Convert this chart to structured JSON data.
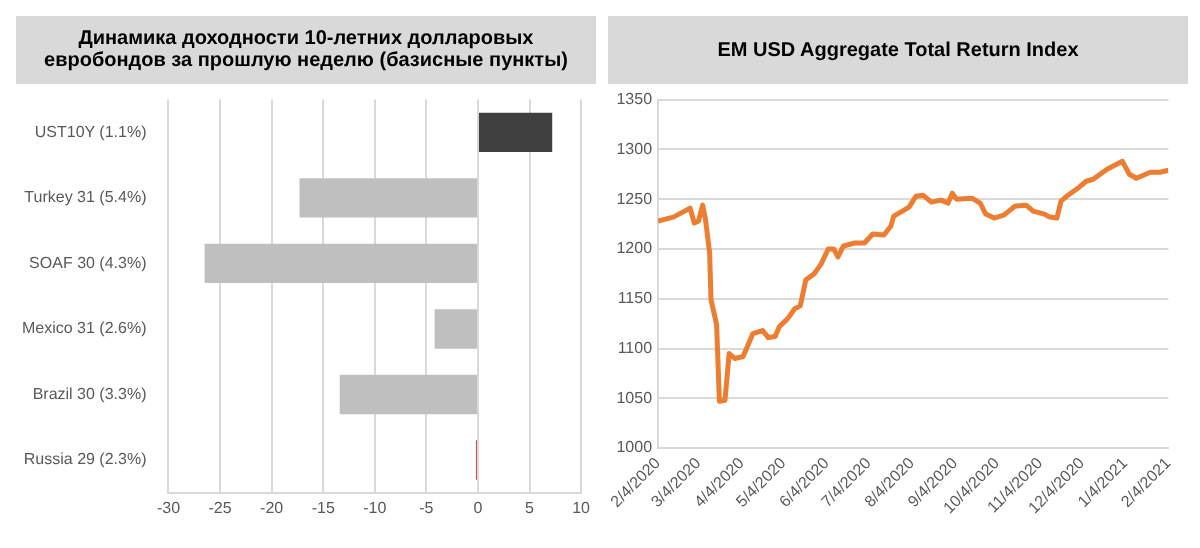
{
  "chart_data": [
    {
      "type": "bar",
      "title": "Динамика доходности 10-летних долларовых евробондов за прошлую неделю (базисные пункты)",
      "orientation": "horizontal",
      "categories": [
        "UST10Y (1.1%)",
        "Turkey 31 (5.4%)",
        "SOAF 30 (4.3%)",
        "Mexico 31 (2.6%)",
        "Brazil 30 (3.3%)",
        "Russia 29 (2.3%)"
      ],
      "values": [
        7.2,
        -17.3,
        -26.5,
        -4.2,
        -13.4,
        -0.2
      ],
      "colors": [
        "#404040",
        "#bfbfbf",
        "#bfbfbf",
        "#bfbfbf",
        "#bfbfbf",
        "#c0504d"
      ],
      "xlim": [
        -30,
        10
      ],
      "xticks": [
        -30,
        -25,
        -20,
        -15,
        -10,
        -5,
        0,
        5,
        10
      ],
      "grid": "x"
    },
    {
      "type": "line",
      "title": "EM USD Aggregate Total Return Index",
      "color": "#ed7d31",
      "x": [
        "2020-02-04",
        "2020-02-15",
        "2020-02-23",
        "2020-02-27",
        "2020-03-01",
        "2020-03-04",
        "2020-03-07",
        "2020-03-09",
        "2020-03-12",
        "2020-03-13",
        "2020-03-17",
        "2020-03-19",
        "2020-03-23",
        "2020-03-26",
        "2020-03-30",
        "2020-04-05",
        "2020-04-09",
        "2020-04-12",
        "2020-04-19",
        "2020-04-23",
        "2020-04-28",
        "2020-05-01",
        "2020-05-07",
        "2020-05-12",
        "2020-05-16",
        "2020-05-20",
        "2020-05-26",
        "2020-05-31",
        "2020-06-05",
        "2020-06-09",
        "2020-06-12",
        "2020-06-16",
        "2020-06-24",
        "2020-07-01",
        "2020-07-07",
        "2020-07-15",
        "2020-07-20",
        "2020-07-22",
        "2020-07-27",
        "2020-08-02",
        "2020-08-07",
        "2020-08-12",
        "2020-08-18",
        "2020-08-25",
        "2020-08-30",
        "2020-09-02",
        "2020-09-05",
        "2020-09-16",
        "2020-09-22",
        "2020-09-26",
        "2020-10-02",
        "2020-10-09",
        "2020-10-17",
        "2020-10-25",
        "2020-10-30",
        "2020-11-07",
        "2020-11-11",
        "2020-11-16",
        "2020-11-19",
        "2020-11-24",
        "2020-12-02",
        "2020-12-07",
        "2020-12-12",
        "2020-12-17",
        "2020-12-22",
        "2021-01-02",
        "2021-01-07",
        "2021-01-12",
        "2021-01-22",
        "2021-01-29",
        "2021-02-04"
      ],
      "values": [
        1228,
        1232,
        1238,
        1241,
        1226,
        1228,
        1244,
        1230,
        1196,
        1149,
        1124,
        1047,
        1048,
        1095,
        1090,
        1092,
        1105,
        1115,
        1118,
        1111,
        1112,
        1122,
        1130,
        1140,
        1143,
        1169,
        1175,
        1185,
        1200,
        1200,
        1192,
        1203,
        1206,
        1206,
        1215,
        1214,
        1223,
        1233,
        1237,
        1242,
        1253,
        1254,
        1247,
        1249,
        1246,
        1256,
        1250,
        1251,
        1246,
        1235,
        1231,
        1234,
        1243,
        1244,
        1238,
        1235,
        1232,
        1231,
        1248,
        1254,
        1262,
        1268,
        1270,
        1275,
        1280,
        1288,
        1275,
        1271,
        1277,
        1277,
        1279
      ],
      "xlim": [
        "2020-02-04",
        "2021-02-04"
      ],
      "xticks": [
        {
          "value": "2020-02-04",
          "label": "2/4/2020"
        },
        {
          "value": "2020-03-04",
          "label": "3/4/2020"
        },
        {
          "value": "2020-04-04",
          "label": "4/4/2020"
        },
        {
          "value": "2020-05-04",
          "label": "5/4/2020"
        },
        {
          "value": "2020-06-04",
          "label": "6/4/2020"
        },
        {
          "value": "2020-07-04",
          "label": "7/4/2020"
        },
        {
          "value": "2020-08-04",
          "label": "8/4/2020"
        },
        {
          "value": "2020-09-04",
          "label": "9/4/2020"
        },
        {
          "value": "2020-10-04",
          "label": "10/4/2020"
        },
        {
          "value": "2020-11-04",
          "label": "11/4/2020"
        },
        {
          "value": "2020-12-04",
          "label": "12/4/2020"
        },
        {
          "value": "2021-01-04",
          "label": "1/4/2021"
        },
        {
          "value": "2021-02-04",
          "label": "2/4/2021"
        }
      ],
      "ylim": [
        1000,
        1350
      ],
      "yticks": [
        1000,
        1050,
        1100,
        1150,
        1200,
        1250,
        1300,
        1350
      ],
      "grid": "y"
    }
  ]
}
